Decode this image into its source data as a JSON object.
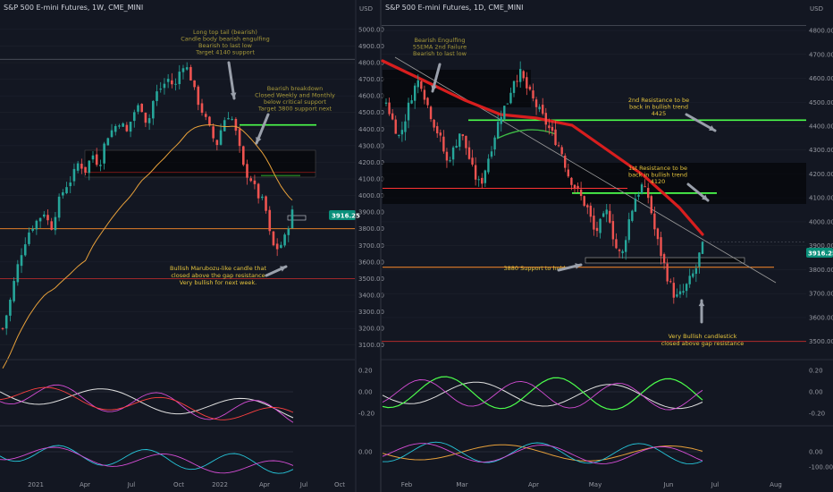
{
  "colors": {
    "bg": "#131722",
    "up": "#26a69a",
    "down": "#ef5350",
    "grid": "#1e222d",
    "axis_text": "#9598a1",
    "yellow": "#f5c518",
    "green_line": "#4cff4c",
    "red_line": "#ff3333",
    "orange_line": "#ff8c2a",
    "ema_red": "#d81e1e",
    "ann_yellow": "#e5c43c",
    "ann_olive": "#a89a3a",
    "price_badge": "#0a8f7a"
  },
  "left": {
    "title": "S&P 500 E-mini Futures, 1W, CME_MINI",
    "price_axis": [
      "5000.00",
      "4900.00",
      "4800.00",
      "4700.00",
      "4600.00",
      "4500.00",
      "4400.00",
      "4300.00",
      "4200.00",
      "4100.00",
      "4000.00",
      "3900.00",
      "3800.00",
      "3700.00",
      "3600.00",
      "3500.00",
      "3400.00",
      "3300.00",
      "3200.00",
      "3100.00"
    ],
    "axis_unit": "USD",
    "time_axis": [
      "2021",
      "Apr",
      "Jul",
      "Oct",
      "2022",
      "Apr",
      "Jul",
      "Oct"
    ],
    "price_badge": "3916.25",
    "osc1_ticks": [
      "0.20",
      "0.00",
      "-0.20"
    ],
    "osc2_ticks": [
      "0.00"
    ],
    "annotations": {
      "top": [
        "Long top tail (bearish)",
        "Candle body bearish engulfing",
        "Bearish to last low",
        "Target 4140 support"
      ],
      "breakdown": [
        "Bearish breakdown",
        "Closed Weekly and Monthly",
        "below critical support",
        "Target 3800 support next"
      ],
      "marubozu": [
        "Bullish Marubozu-like candle that",
        "closed above the gap resistance",
        "Very bullish for next week."
      ]
    }
  },
  "right": {
    "title": "S&P 500 E-mini Futures, 1D, CME_MINI",
    "axis_unit": "USD",
    "price_axis": [
      "4800.00",
      "4700.00",
      "4600.00",
      "4500.00",
      "4400.00",
      "4300.00",
      "4200.00",
      "4100.00",
      "4000.00",
      "3900.00",
      "3800.00",
      "3700.00",
      "3600.00",
      "3500.00"
    ],
    "time_axis": [
      "Feb",
      "Mar",
      "Apr",
      "May",
      "Jun",
      "Jul",
      "Aug"
    ],
    "price_badge": "3916.25",
    "osc1_ticks": [
      "0.20",
      "0.00",
      "-0.20"
    ],
    "osc2_ticks": [
      "0.00",
      "-100.00"
    ],
    "annotations": {
      "engulf": [
        "Bearish Engulfing",
        "55EMA 2nd Failure",
        "Bearish to last low"
      ],
      "res2": [
        "2nd Resistance to be",
        "back in bullish trend",
        "4425"
      ],
      "res1": [
        "1st Resistance to be",
        "back in bullish trend",
        "4120"
      ],
      "support": [
        "3880 Support to hold"
      ],
      "bull": [
        "Very Bullish candlestick",
        "closed above gap resistance"
      ]
    }
  },
  "chart_data": [
    {
      "type": "candlestick",
      "title": "S&P 500 E-mini Futures, 1W, CME_MINI",
      "ylabel": "USD",
      "ylim": [
        3050,
        5080
      ],
      "x_labels": [
        "2021",
        "Apr",
        "Jul",
        "Oct",
        "2022",
        "Apr",
        "Jul",
        "Oct"
      ],
      "close_path": [
        3200,
        3350,
        3550,
        3700,
        3800,
        3850,
        3900,
        3800,
        3950,
        4050,
        4100,
        4200,
        4150,
        4250,
        4180,
        4350,
        4400,
        4450,
        4380,
        4500,
        4550,
        4420,
        4600,
        4650,
        4700,
        4650,
        4800,
        4750,
        4600,
        4500,
        4400,
        4300,
        4450,
        4500,
        4350,
        4150,
        4100,
        4000,
        3950,
        3700,
        3680,
        3750,
        3916
      ],
      "levels": {
        "green_upper": 4425,
        "green_lower": 4120,
        "red_resistance": 4140,
        "orange_support": 3800,
        "red_support": 3500,
        "top_line": 4820,
        "last_price": 3916.25
      }
    },
    {
      "type": "candlestick",
      "title": "S&P 500 E-mini Futures, 1D, CME_MINI",
      "ylabel": "USD",
      "ylim": [
        3450,
        4860
      ],
      "x_labels": [
        "Feb",
        "Mar",
        "Apr",
        "May",
        "Jun",
        "Jul",
        "Aug"
      ],
      "close_path": [
        4500,
        4420,
        4350,
        4450,
        4550,
        4600,
        4500,
        4420,
        4350,
        4250,
        4300,
        4380,
        4300,
        4200,
        4150,
        4250,
        4350,
        4450,
        4500,
        4600,
        4620,
        4550,
        4500,
        4450,
        4400,
        4350,
        4300,
        4200,
        4150,
        4100,
        4050,
        3950,
        4000,
        4050,
        3900,
        3850,
        4000,
        4100,
        4150,
        4100,
        3950,
        3850,
        3750,
        3680,
        3700,
        3750,
        3800,
        3916
      ],
      "levels": {
        "green_upper": 4425,
        "green_lower": 4120,
        "red_resistance": 4140,
        "gap_resistance": 3880,
        "orange_support": 3810,
        "red_support": 3500,
        "last_price": 3916.25
      }
    }
  ]
}
